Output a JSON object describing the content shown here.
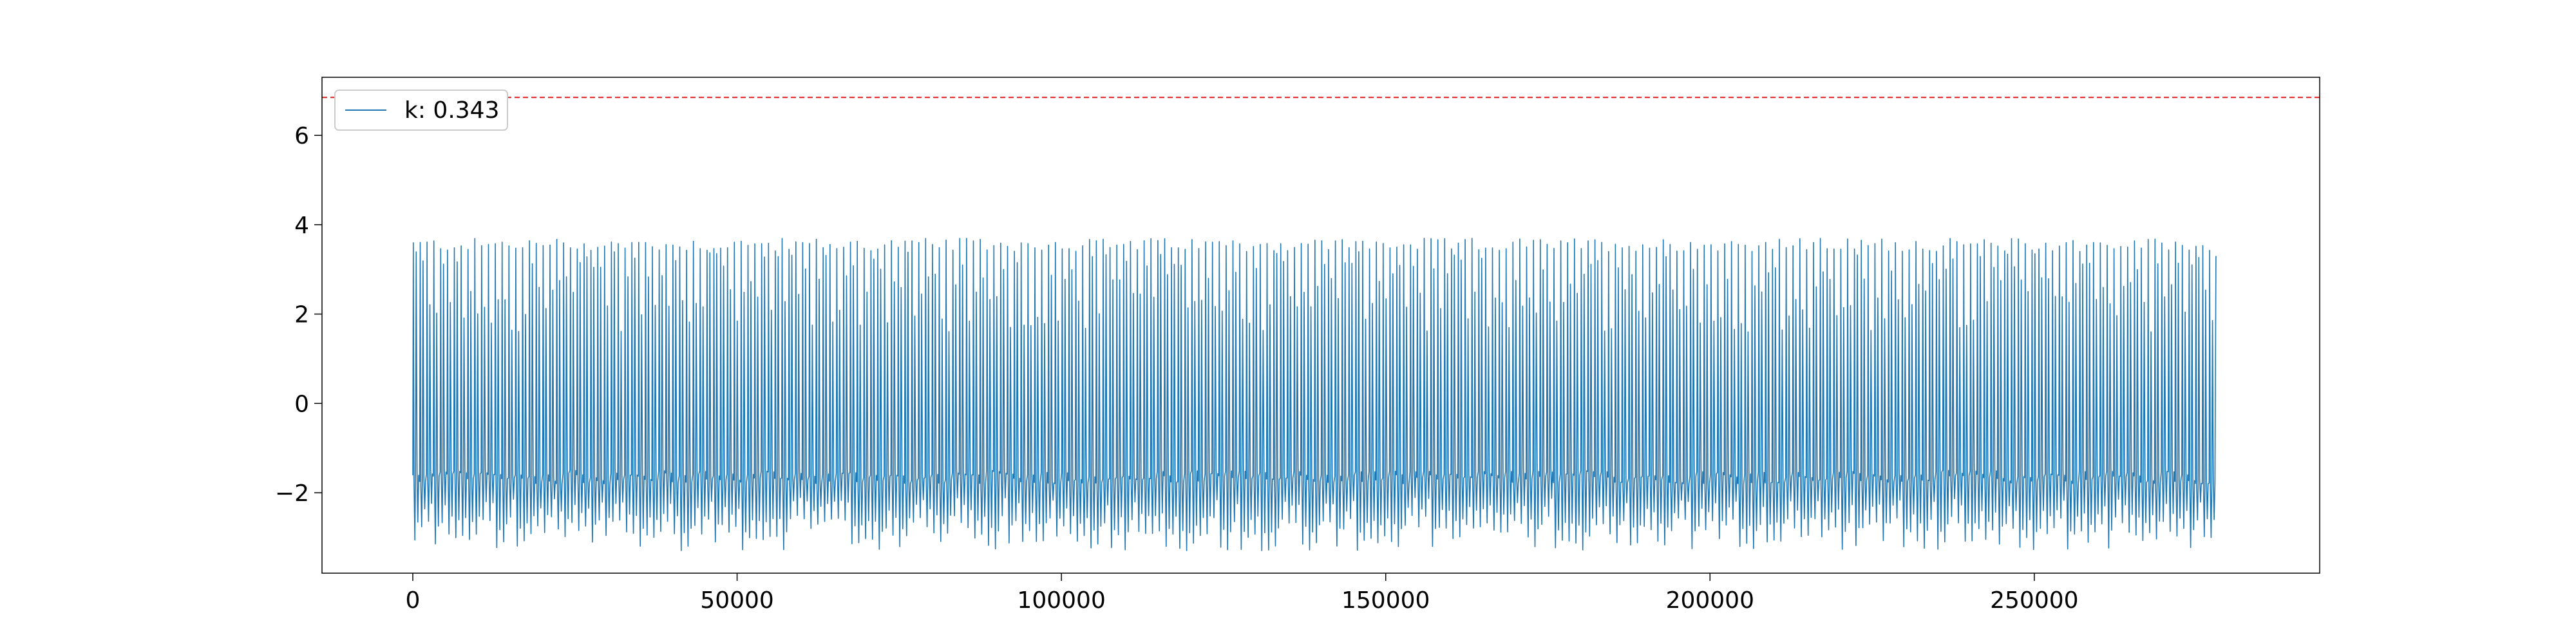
{
  "chart_data": {
    "type": "line",
    "title": "",
    "xlabel": "",
    "ylabel": "",
    "xlim": [
      -14000,
      294000
    ],
    "ylim": [
      -3.8,
      7.3
    ],
    "x_ticks": [
      0,
      50000,
      100000,
      150000,
      200000,
      250000
    ],
    "y_ticks": [
      -2,
      0,
      2,
      4,
      6
    ],
    "x_tick_labels": [
      "0",
      "50000",
      "100000",
      "150000",
      "200000",
      "250000"
    ],
    "y_tick_labels": [
      "−2",
      "0",
      "2",
      "4",
      "6"
    ],
    "grid": false,
    "legend_position": "top-left",
    "series": [
      {
        "name": "k: 0.343",
        "color": "#1f77b4",
        "x_start": 0,
        "x_end": 278000,
        "cycle_count": 264,
        "peak_range": [
          3.4,
          3.7
        ],
        "trough_range": [
          -3.3,
          -2.5
        ],
        "typical_trough": -1.8
      }
    ],
    "threshold": {
      "y": 6.85,
      "color": "#e31a1c",
      "style": "dashed"
    }
  }
}
